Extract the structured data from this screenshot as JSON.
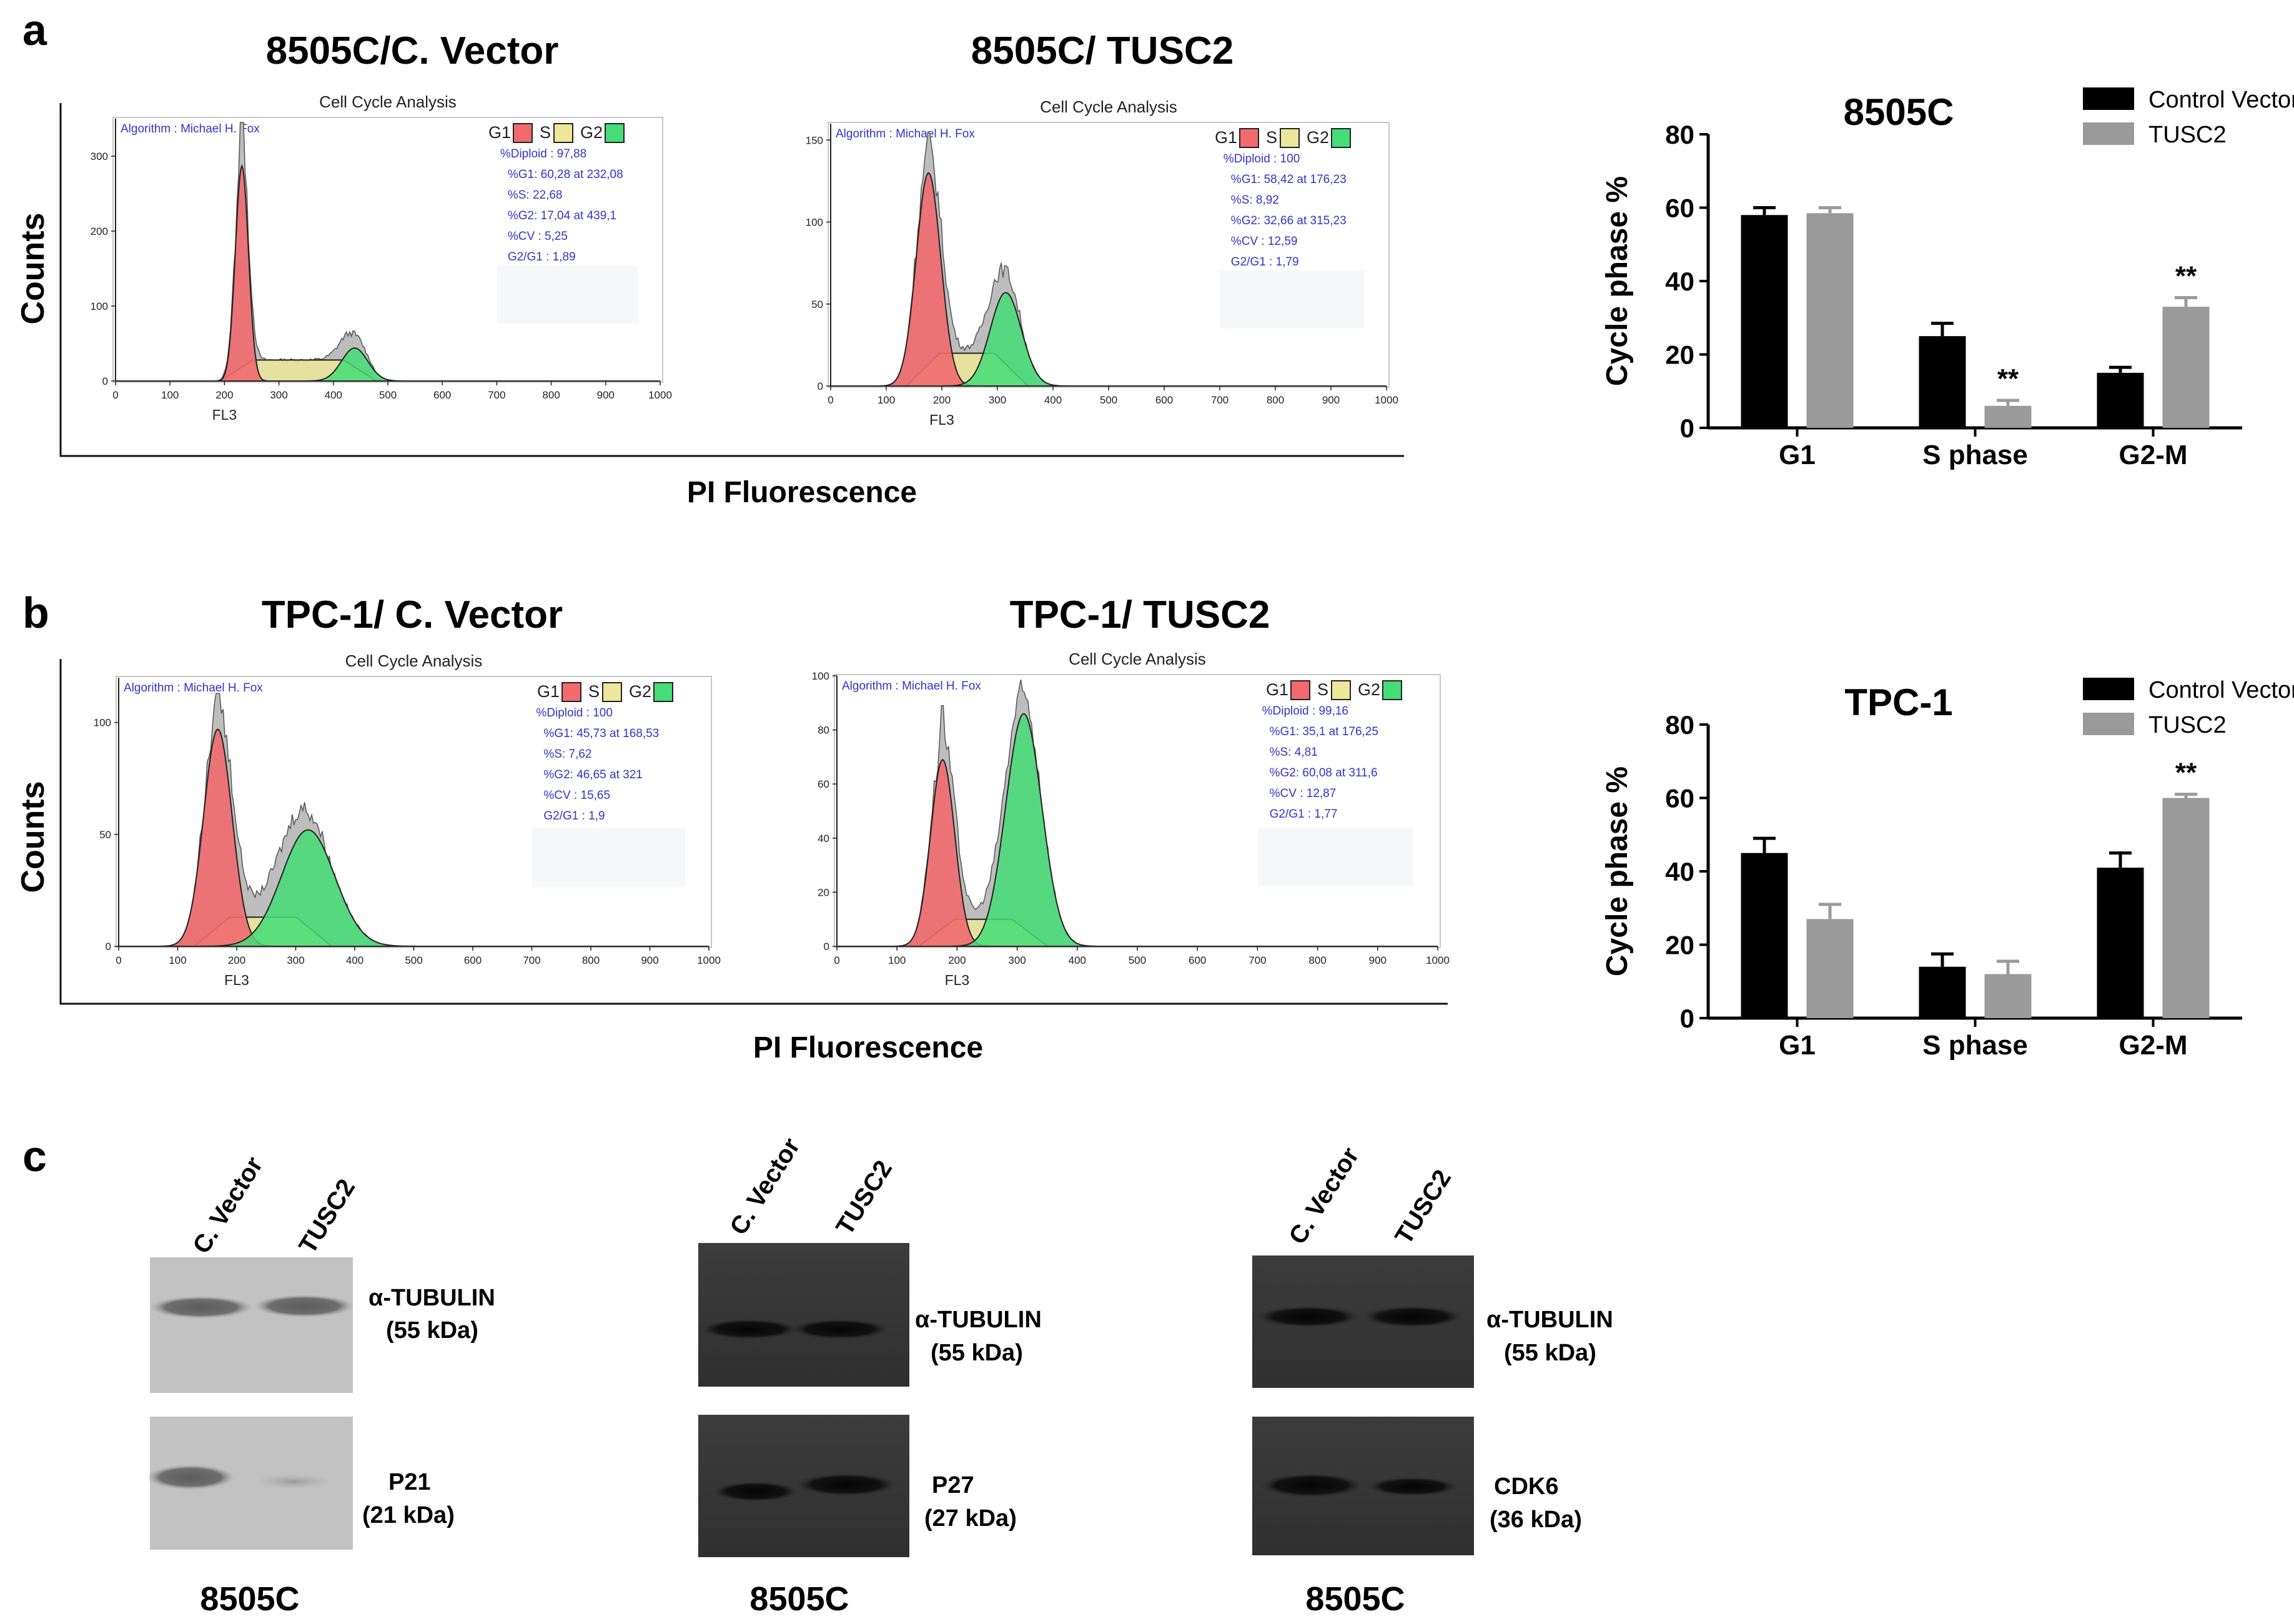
{
  "colors": {
    "g1": "#f06a6e",
    "s": "#ece79a",
    "g2": "#44dd77",
    "raw": "#bdbdbd",
    "stat_text": "#3333cc",
    "control_bar": "#000000",
    "tusc2_bar": "#9a9a9a"
  },
  "panels": {
    "a": "a",
    "b": "b",
    "c": "c"
  },
  "panel_a": {
    "title_left": "8505C/C. Vector",
    "title_right": "8505C/ TUSC2",
    "ylabel": "Counts",
    "xlabel": "PI Fluorescence"
  },
  "panel_b": {
    "title_left": "TPC-1/ C. Vector",
    "title_right": "TPC-1/ TUSC2",
    "ylabel": "Counts",
    "xlabel": "PI Fluorescence"
  },
  "flow_common": {
    "title": "Cell Cycle Analysis",
    "algorithm": "Algorithm : Michael H. Fox",
    "xlabel": "FL3",
    "legend": [
      "G1",
      "S",
      "G2"
    ]
  },
  "chart_data": [
    {
      "id": "flow_8505c_vector",
      "type": "area",
      "title": "Cell Cycle Analysis",
      "xlabel": "FL3",
      "xlim": [
        0,
        1000
      ],
      "ylim": [
        0,
        350
      ],
      "xticks": [
        "0",
        "100",
        "200",
        "300",
        "400",
        "500",
        "600",
        "700",
        "800",
        "900",
        "1000"
      ],
      "yticks": [
        "0",
        "100",
        "200",
        "300"
      ],
      "stats": [
        "%Diploid : 97,88",
        "%G1: 60,28 at 232,08",
        "%S: 22,68",
        "%G2: 17,04 at 439,1",
        "%CV : 5,25",
        "G2/G1 : 1,89"
      ],
      "components": {
        "g1": {
          "center": 232,
          "sd": 12,
          "peak": 287
        },
        "s": {
          "from": 232,
          "to": 439,
          "level": 28
        },
        "g2": {
          "center": 439,
          "sd": 24,
          "peak": 44
        }
      },
      "raw_peak": 345
    },
    {
      "id": "flow_8505c_tusc2",
      "type": "area",
      "title": "Cell Cycle Analysis",
      "xlabel": "FL3",
      "xlim": [
        0,
        1000
      ],
      "ylim": [
        0,
        160
      ],
      "xticks": [
        "0",
        "100",
        "200",
        "300",
        "400",
        "500",
        "600",
        "700",
        "800",
        "900",
        "1000"
      ],
      "yticks": [
        "0",
        "50",
        "100",
        "150"
      ],
      "stats": [
        "%Diploid : 100",
        "%G1: 58,42 at 176,23",
        "%S: 8,92",
        "%G2: 32,66 at 315,23",
        "%CV : 12,59",
        "G2/G1 : 1,79"
      ],
      "components": {
        "g1": {
          "center": 176,
          "sd": 22,
          "peak": 130
        },
        "s": {
          "from": 176,
          "to": 315,
          "level": 20
        },
        "g2": {
          "center": 315,
          "sd": 28,
          "peak": 57
        }
      },
      "raw_peak": 155
    },
    {
      "id": "flow_tpc1_vector",
      "type": "area",
      "title": "Cell Cycle Analysis",
      "xlabel": "FL3",
      "xlim": [
        0,
        1000
      ],
      "ylim": [
        0,
        120
      ],
      "xticks": [
        "0",
        "100",
        "200",
        "300",
        "400",
        "500",
        "600",
        "700",
        "800",
        "900",
        "1000"
      ],
      "yticks": [
        "0",
        "50",
        "100"
      ],
      "stats": [
        "%Diploid : 100",
        "%G1: 45,73 at 168,53",
        "%S: 7,62",
        "%G2: 46,65 at 321",
        "%CV : 15,65",
        "G2/G1 : 1,9"
      ],
      "components": {
        "g1": {
          "center": 168,
          "sd": 24,
          "peak": 97
        },
        "s": {
          "from": 168,
          "to": 321,
          "level": 13
        },
        "g2": {
          "center": 321,
          "sd": 45,
          "peak": 52
        }
      },
      "raw_peak": 113
    },
    {
      "id": "flow_tpc1_tusc2",
      "type": "area",
      "title": "Cell Cycle Analysis",
      "xlabel": "FL3",
      "xlim": [
        0,
        1000
      ],
      "ylim": [
        0,
        100
      ],
      "xticks": [
        "0",
        "100",
        "200",
        "300",
        "400",
        "500",
        "600",
        "700",
        "800",
        "900",
        "1000"
      ],
      "yticks": [
        "0",
        "20",
        "40",
        "60",
        "80",
        "100"
      ],
      "stats": [
        "%Diploid : 99,16",
        "%G1: 35,1 at 176,25",
        "%S: 4,81",
        "%G2: 60,08 at 311,6",
        "%CV : 12,87",
        "G2/G1 : 1,77"
      ],
      "components": {
        "g1": {
          "center": 176,
          "sd": 20,
          "peak": 69
        },
        "s": {
          "from": 176,
          "to": 311,
          "level": 10
        },
        "g2": {
          "center": 311,
          "sd": 30,
          "peak": 86
        }
      },
      "raw_peak": 89
    },
    {
      "id": "bar_8505c",
      "type": "bar",
      "title": "8505C",
      "ylabel": "Cycle phase %",
      "ylim": [
        0,
        80
      ],
      "yticks": [
        "0",
        "20",
        "40",
        "60",
        "80"
      ],
      "categories": [
        "G1",
        "S phase",
        "G2-M"
      ],
      "series": [
        {
          "name": "Control Vector",
          "values": [
            58,
            25,
            15
          ],
          "errors": [
            2,
            3.5,
            1.5
          ]
        },
        {
          "name": "TUSC2",
          "values": [
            58.5,
            6,
            33
          ],
          "errors": [
            1.5,
            1.5,
            2.5
          ]
        }
      ],
      "annotations": [
        {
          "category": "S phase",
          "series": "TUSC2",
          "text": "**"
        },
        {
          "category": "G2-M",
          "series": "TUSC2",
          "text": "**"
        }
      ]
    },
    {
      "id": "bar_tpc1",
      "type": "bar",
      "title": "TPC-1",
      "ylabel": "Cycle phase %",
      "ylim": [
        0,
        80
      ],
      "yticks": [
        "0",
        "20",
        "40",
        "60",
        "80"
      ],
      "categories": [
        "G1",
        "S phase",
        "G2-M"
      ],
      "series": [
        {
          "name": "Control Vector",
          "values": [
            45,
            14,
            41
          ],
          "errors": [
            4,
            3.5,
            4
          ]
        },
        {
          "name": "TUSC2",
          "values": [
            27,
            12,
            60
          ],
          "errors": [
            4,
            3.5,
            1
          ]
        }
      ],
      "annotations": [
        {
          "category": "G2-M",
          "series": "TUSC2",
          "text": "**"
        }
      ]
    }
  ],
  "western_blots": {
    "lanes": [
      "C. Vector",
      "TUSC2"
    ],
    "blots": [
      {
        "cell_line": "8505C",
        "top_protein": "α-TUBULIN",
        "top_size": "(55 kDa)",
        "bottom_protein": "P21",
        "bottom_size": "(21 kDa)"
      },
      {
        "cell_line": "8505C",
        "top_protein": "α-TUBULIN",
        "top_size": "(55 kDa)",
        "bottom_protein": "P27",
        "bottom_size": "(27 kDa)"
      },
      {
        "cell_line": "8505C",
        "top_protein": "α-TUBULIN",
        "top_size": "(55 kDa)",
        "bottom_protein": "CDK6",
        "bottom_size": "(36 kDa)"
      }
    ]
  }
}
